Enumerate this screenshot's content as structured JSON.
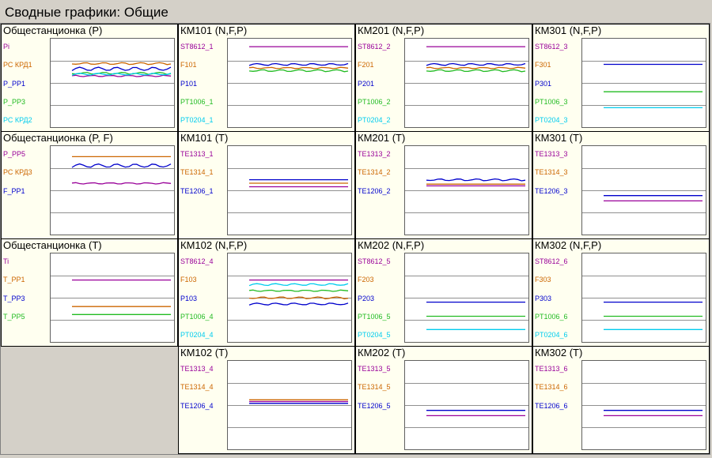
{
  "window": {
    "title": "Сводные графики: Общие"
  },
  "colors": {
    "purple": "#990099",
    "orange": "#cc6600",
    "blue": "#0000cc",
    "green": "#22bb22",
    "cyan": "#00ccee"
  },
  "panels": [
    {
      "id": "p_oa_p",
      "title": "Общестанционка (P)",
      "labels": [
        {
          "text": "Pi",
          "color": "purple"
        },
        {
          "text": "РС КРД1",
          "color": "orange"
        },
        {
          "text": "P_PP1",
          "color": "blue"
        },
        {
          "text": "P_PP3",
          "color": "green"
        },
        {
          "text": "РС КРД2",
          "color": "cyan"
        }
      ],
      "series": [
        {
          "color": "orange",
          "level": 0.72,
          "noise": 1
        },
        {
          "color": "blue",
          "level": 0.66,
          "noise": 2
        },
        {
          "color": "purple",
          "level": 0.58,
          "noise": 1
        },
        {
          "color": "green",
          "level": 0.61,
          "noise": 1
        },
        {
          "color": "cyan",
          "level": 0.6,
          "noise": 1
        }
      ]
    },
    {
      "id": "p_km101",
      "title": "КМ101 (N,F,P)",
      "labels": [
        {
          "text": "ST8612_1",
          "color": "purple"
        },
        {
          "text": "F101",
          "color": "orange"
        },
        {
          "text": "P101",
          "color": "blue"
        },
        {
          "text": "PT1006_1",
          "color": "green"
        },
        {
          "text": "PT0204_1",
          "color": "cyan"
        }
      ],
      "series": [
        {
          "color": "purple",
          "level": 0.91,
          "noise": 0
        },
        {
          "color": "blue",
          "level": 0.71,
          "noise": 1
        },
        {
          "color": "orange",
          "level": 0.67,
          "noise": 1
        },
        {
          "color": "green",
          "level": 0.64,
          "noise": 1
        }
      ]
    },
    {
      "id": "p_km201",
      "title": "КМ201 (N,F,P)",
      "labels": [
        {
          "text": "ST8612_2",
          "color": "purple"
        },
        {
          "text": "F201",
          "color": "orange"
        },
        {
          "text": "P201",
          "color": "blue"
        },
        {
          "text": "PT1006_2",
          "color": "green"
        },
        {
          "text": "PT0204_2",
          "color": "cyan"
        }
      ],
      "series": [
        {
          "color": "purple",
          "level": 0.91,
          "noise": 0
        },
        {
          "color": "blue",
          "level": 0.71,
          "noise": 1
        },
        {
          "color": "orange",
          "level": 0.67,
          "noise": 1
        },
        {
          "color": "green",
          "level": 0.64,
          "noise": 1
        }
      ]
    },
    {
      "id": "p_km301",
      "title": "КМ301 (N,F,P)",
      "labels": [
        {
          "text": "ST8612_3",
          "color": "purple"
        },
        {
          "text": "F301",
          "color": "orange"
        },
        {
          "text": "P301",
          "color": "blue"
        },
        {
          "text": "PT1006_3",
          "color": "green"
        },
        {
          "text": "PT0204_3",
          "color": "cyan"
        }
      ],
      "series": [
        {
          "color": "blue",
          "level": 0.71,
          "noise": 0
        },
        {
          "color": "green",
          "level": 0.4,
          "noise": 0
        },
        {
          "color": "cyan",
          "level": 0.22,
          "noise": 0
        }
      ]
    },
    {
      "id": "p_oa_pf",
      "title": "Общестанционка (P, F)",
      "labels": [
        {
          "text": "P_PP5",
          "color": "purple"
        },
        {
          "text": "РС КРД3",
          "color": "orange"
        },
        {
          "text": "F_PP1",
          "color": "blue"
        }
      ],
      "series": [
        {
          "color": "orange",
          "level": 0.88,
          "noise": 0
        },
        {
          "color": "blue",
          "level": 0.78,
          "noise": 2
        },
        {
          "color": "purple",
          "level": 0.58,
          "noise": 1
        }
      ]
    },
    {
      "id": "p_km101t",
      "title": "КМ101 (T)",
      "labels": [
        {
          "text": "TE1313_1",
          "color": "purple"
        },
        {
          "text": "TE1314_1",
          "color": "orange"
        },
        {
          "text": "TE1206_1",
          "color": "blue"
        }
      ],
      "series": [
        {
          "color": "blue",
          "level": 0.62,
          "noise": 0
        },
        {
          "color": "orange",
          "level": 0.58,
          "noise": 0
        },
        {
          "color": "purple",
          "level": 0.54,
          "noise": 0
        }
      ]
    },
    {
      "id": "p_km201t",
      "title": "КМ201 (T)",
      "labels": [
        {
          "text": "TE1313_2",
          "color": "purple"
        },
        {
          "text": "TE1314_2",
          "color": "orange"
        },
        {
          "text": "TE1206_2",
          "color": "blue"
        }
      ],
      "series": [
        {
          "color": "blue",
          "level": 0.62,
          "noise": 1
        },
        {
          "color": "orange",
          "level": 0.57,
          "noise": 0
        },
        {
          "color": "purple",
          "level": 0.55,
          "noise": 0
        }
      ]
    },
    {
      "id": "p_km301t",
      "title": "КМ301 (T)",
      "labels": [
        {
          "text": "TE1313_3",
          "color": "purple"
        },
        {
          "text": "TE1314_3",
          "color": "orange"
        },
        {
          "text": "TE1206_3",
          "color": "blue"
        }
      ],
      "series": [
        {
          "color": "blue",
          "level": 0.44,
          "noise": 0
        },
        {
          "color": "purple",
          "level": 0.38,
          "noise": 0
        }
      ]
    },
    {
      "id": "p_oa_t",
      "title": "Общестанционка (T)",
      "labels": [
        {
          "text": "Ti",
          "color": "purple"
        },
        {
          "text": "T_PP1",
          "color": "orange"
        },
        {
          "text": "T_PP3",
          "color": "blue"
        },
        {
          "text": "T_PP5",
          "color": "green"
        }
      ],
      "series": [
        {
          "color": "purple",
          "level": 0.7,
          "noise": 0
        },
        {
          "color": "orange",
          "level": 0.4,
          "noise": 0
        },
        {
          "color": "green",
          "level": 0.31,
          "noise": 0
        }
      ]
    },
    {
      "id": "p_km102",
      "title": "КМ102 (N,F,P)",
      "labels": [
        {
          "text": "ST8612_4",
          "color": "purple"
        },
        {
          "text": "F103",
          "color": "orange"
        },
        {
          "text": "P103",
          "color": "blue"
        },
        {
          "text": "PT1006_4",
          "color": "green"
        },
        {
          "text": "PT0204_4",
          "color": "cyan"
        }
      ],
      "series": [
        {
          "color": "purple",
          "level": 0.7,
          "noise": 0
        },
        {
          "color": "cyan",
          "level": 0.65,
          "noise": 1
        },
        {
          "color": "green",
          "level": 0.58,
          "noise": 1
        },
        {
          "color": "orange",
          "level": 0.5,
          "noise": 1
        },
        {
          "color": "blue",
          "level": 0.43,
          "noise": 1
        }
      ]
    },
    {
      "id": "p_km202",
      "title": "КМ202 (N,F,P)",
      "labels": [
        {
          "text": "ST8612_5",
          "color": "purple"
        },
        {
          "text": "F203",
          "color": "orange"
        },
        {
          "text": "P203",
          "color": "blue"
        },
        {
          "text": "PT1006_5",
          "color": "green"
        },
        {
          "text": "PT0204_5",
          "color": "cyan"
        }
      ],
      "series": [
        {
          "color": "blue",
          "level": 0.45,
          "noise": 0
        },
        {
          "color": "green",
          "level": 0.29,
          "noise": 0
        },
        {
          "color": "cyan",
          "level": 0.14,
          "noise": 0
        }
      ]
    },
    {
      "id": "p_km302",
      "title": "КМ302 (N,F,P)",
      "labels": [
        {
          "text": "ST8612_6",
          "color": "purple"
        },
        {
          "text": "F303",
          "color": "orange"
        },
        {
          "text": "P303",
          "color": "blue"
        },
        {
          "text": "PT1006_6",
          "color": "green"
        },
        {
          "text": "PT0204_6",
          "color": "cyan"
        }
      ],
      "series": [
        {
          "color": "blue",
          "level": 0.45,
          "noise": 0
        },
        {
          "color": "green",
          "level": 0.29,
          "noise": 0
        },
        {
          "color": "cyan",
          "level": 0.14,
          "noise": 0
        }
      ]
    },
    {
      "id": "p_km102t",
      "title": "КМ102 (T)",
      "labels": [
        {
          "text": "TE1313_4",
          "color": "purple"
        },
        {
          "text": "TE1314_4",
          "color": "orange"
        },
        {
          "text": "TE1206_4",
          "color": "blue"
        }
      ],
      "series": [
        {
          "color": "orange",
          "level": 0.56,
          "noise": 0
        },
        {
          "color": "purple",
          "level": 0.54,
          "noise": 0
        },
        {
          "color": "blue",
          "level": 0.52,
          "noise": 0
        }
      ]
    },
    {
      "id": "p_km202t",
      "title": "КМ202 (T)",
      "labels": [
        {
          "text": "TE1313_5",
          "color": "purple"
        },
        {
          "text": "TE1314_5",
          "color": "orange"
        },
        {
          "text": "TE1206_5",
          "color": "blue"
        }
      ],
      "series": [
        {
          "color": "blue",
          "level": 0.44,
          "noise": 0
        },
        {
          "color": "purple",
          "level": 0.38,
          "noise": 0
        }
      ]
    },
    {
      "id": "p_km302t",
      "title": "КМ302 (T)",
      "labels": [
        {
          "text": "TE1313_6",
          "color": "purple"
        },
        {
          "text": "TE1314_6",
          "color": "orange"
        },
        {
          "text": "TE1206_6",
          "color": "blue"
        }
      ],
      "series": [
        {
          "color": "blue",
          "level": 0.44,
          "noise": 0
        },
        {
          "color": "purple",
          "level": 0.38,
          "noise": 0
        }
      ]
    }
  ]
}
